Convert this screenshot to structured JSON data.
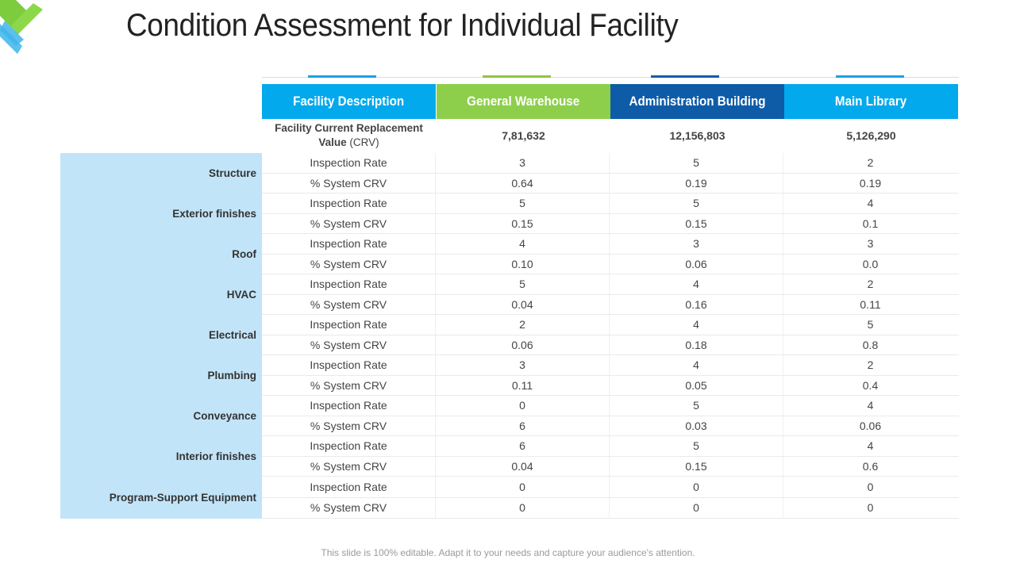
{
  "slide": {
    "title": "Condition Assessment for Individual Facility",
    "footer": "This slide is 100% editable. Adapt it to your needs and capture your audience's attention."
  },
  "colors": {
    "cyan": "#02a9ec",
    "green": "#8dcf4b",
    "navy": "#0e5ca8",
    "sidebar": "#c2e4f8"
  },
  "table": {
    "headers": [
      "Facility Description",
      "General Warehouse",
      "Administration Building",
      "Main Library"
    ],
    "crv_label_bold": "Facility Current Replacement Value",
    "crv_label_suffix": "(CRV)",
    "crv_values": [
      "7,81,632",
      "12,156,803",
      "5,126,290"
    ],
    "groups": [
      {
        "name": "Structure",
        "rows": [
          {
            "metric": "Inspection Rate",
            "values": [
              "3",
              "5",
              "2"
            ]
          },
          {
            "metric": "% System CRV",
            "values": [
              "0.64",
              "0.19",
              "0.19"
            ]
          }
        ]
      },
      {
        "name": "Exterior finishes",
        "rows": [
          {
            "metric": "Inspection Rate",
            "values": [
              "5",
              "5",
              "4"
            ]
          },
          {
            "metric": "% System CRV",
            "values": [
              "0.15",
              "0.15",
              "0.1"
            ]
          }
        ]
      },
      {
        "name": "Roof",
        "rows": [
          {
            "metric": "Inspection Rate",
            "values": [
              "4",
              "3",
              "3"
            ]
          },
          {
            "metric": "% System CRV",
            "values": [
              "0.10",
              "0.06",
              "0.0"
            ]
          }
        ]
      },
      {
        "name": "HVAC",
        "rows": [
          {
            "metric": "Inspection Rate",
            "values": [
              "5",
              "4",
              "2"
            ]
          },
          {
            "metric": "% System CRV",
            "values": [
              "0.04",
              "0.16",
              "0.11"
            ]
          }
        ]
      },
      {
        "name": "Electrical",
        "rows": [
          {
            "metric": "Inspection Rate",
            "values": [
              "2",
              "4",
              "5"
            ]
          },
          {
            "metric": "% System CRV",
            "values": [
              "0.06",
              "0.18",
              "0.8"
            ]
          }
        ]
      },
      {
        "name": "Plumbing",
        "rows": [
          {
            "metric": "Inspection Rate",
            "values": [
              "3",
              "4",
              "2"
            ]
          },
          {
            "metric": "% System CRV",
            "values": [
              "0.11",
              "0.05",
              "0.4"
            ]
          }
        ]
      },
      {
        "name": "Conveyance",
        "rows": [
          {
            "metric": "Inspection Rate",
            "values": [
              "0",
              "5",
              "4"
            ]
          },
          {
            "metric": "% System CRV",
            "values": [
              "6",
              "0.03",
              "0.06"
            ]
          }
        ]
      },
      {
        "name": "Interior finishes",
        "rows": [
          {
            "metric": "Inspection Rate",
            "values": [
              "6",
              "5",
              "4"
            ]
          },
          {
            "metric": "% System CRV",
            "values": [
              "0.04",
              "0.15",
              "0.6"
            ]
          }
        ]
      },
      {
        "name": "Program-Support Equipment",
        "rows": [
          {
            "metric": "Inspection Rate",
            "values": [
              "0",
              "0",
              "0"
            ]
          },
          {
            "metric": "% System CRV",
            "values": [
              "0",
              "0",
              "0"
            ]
          }
        ]
      }
    ]
  }
}
